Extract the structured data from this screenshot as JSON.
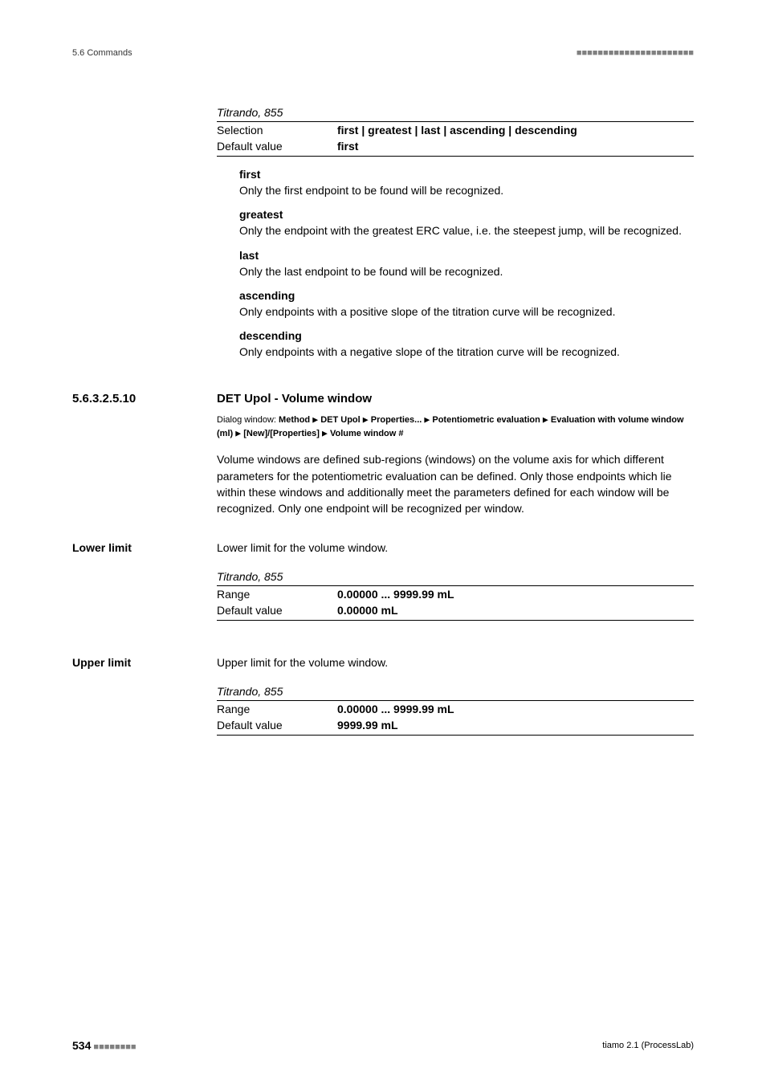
{
  "header": {
    "section_label": "5.6 Commands",
    "dashes": "■■■■■■■■■■■■■■■■■■■■■■"
  },
  "top_spec": {
    "device": "Titrando, 855",
    "selection_label": "Selection",
    "selection_value": "first | greatest | last | ascending | descending",
    "default_label": "Default value",
    "default_value": "first"
  },
  "terms": [
    {
      "name": "first",
      "body": "Only the first endpoint to be found will be recognized."
    },
    {
      "name": "greatest",
      "body": "Only the endpoint with the greatest ERC value, i.e. the steepest jump, will be recognized."
    },
    {
      "name": "last",
      "body": "Only the last endpoint to be found will be recognized."
    },
    {
      "name": "ascending",
      "body": "Only endpoints with a positive slope of the titration curve will be recognized."
    },
    {
      "name": "descending",
      "body": "Only endpoints with a negative slope of the titration curve will be recognized."
    }
  ],
  "section": {
    "number": "5.6.3.2.5.10",
    "title": "DET Upol - Volume window",
    "dialog_label": "Dialog window:",
    "path_parts": [
      "Method",
      "DET Upol",
      "Properties...",
      "Potentiometric evaluation",
      "Evaluation with volume window (ml)",
      "[New]/[Properties]",
      "Volume window #"
    ],
    "body": "Volume windows are defined sub-regions (windows) on the volume axis for which different parameters for the potentiometric evaluation can be defined. Only those endpoints which lie within these windows and additionally meet the parameters defined for each window will be recognized. Only one endpoint will be recognized per window."
  },
  "lower_limit": {
    "label": "Lower limit",
    "desc": "Lower limit for the volume window.",
    "device": "Titrando, 855",
    "range_label": "Range",
    "range_value": "0.00000 ... 9999.99 mL",
    "default_label": "Default value",
    "default_value": "0.00000 mL"
  },
  "upper_limit": {
    "label": "Upper limit",
    "desc": "Upper limit for the volume window.",
    "device": "Titrando, 855",
    "range_label": "Range",
    "range_value": "0.00000 ... 9999.99 mL",
    "default_label": "Default value",
    "default_value": "9999.99 mL"
  },
  "footer": {
    "page": "534",
    "dashes": "■■■■■■■■",
    "right": "tiamo 2.1 (ProcessLab)"
  }
}
